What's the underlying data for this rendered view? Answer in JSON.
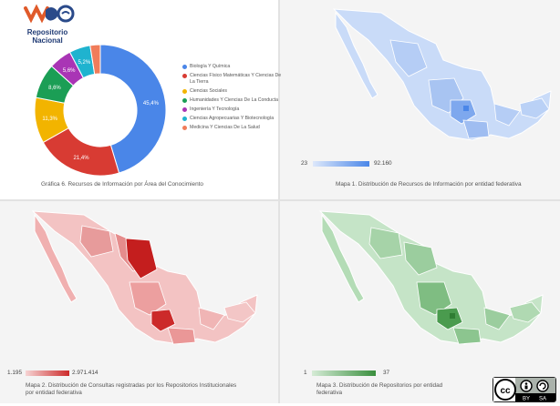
{
  "logo": {
    "title_line1": "Repositorio",
    "title_line2": "Nacional"
  },
  "chart_data": {
    "type": "pie",
    "categories": [
      "Biología Y Química",
      "Ciencias Físico Matemáticas Y Ciencias De La Tierra",
      "Ciencias Sociales",
      "Humanidades Y Ciencias De La Conducta",
      "Ingeniería Y Tecnología",
      "Ciencias Agropecuarias Y Biotecnología",
      "Medicina Y Ciencias De La Salud"
    ],
    "values": [
      45.4,
      21.4,
      11.3,
      8.6,
      5.6,
      5.2,
      2.5
    ],
    "data_labels": [
      "45,4%",
      "21,4%",
      "11,3%",
      "8,6%",
      "5,6%",
      "5,2%",
      ""
    ],
    "colors": [
      "#4a86e8",
      "#d83b33",
      "#f2b400",
      "#1b9e55",
      "#a935b5",
      "#1fb3cf",
      "#f07c5a"
    ],
    "title": "Gráfica 6. Recursos de Información por Área del Conocimiento",
    "legend_position": "right"
  },
  "legend": [
    {
      "label": "Biología Y Química",
      "color": "#4a86e8"
    },
    {
      "label": "Ciencias Físico Matemáticas Y Ciencias De La Tierra",
      "color": "#d83b33"
    },
    {
      "label": "Ciencias Sociales",
      "color": "#f2b400"
    },
    {
      "label": "Humanidades Y Ciencias De La Conducta",
      "color": "#1b9e55"
    },
    {
      "label": "Ingeniería Y Tecnología",
      "color": "#a935b5"
    },
    {
      "label": "Ciencias Agropecuarias Y Biotecnología",
      "color": "#1fb3cf"
    },
    {
      "label": "Medicina Y Ciencias De La Salud",
      "color": "#f07c5a"
    }
  ],
  "map1": {
    "caption": "Mapa 1. Distribución de Recursos de Información por entidad federativa",
    "scale_min": "23",
    "scale_max": "92.160",
    "color_low": "#dde8fb",
    "color_high": "#4a86e8"
  },
  "map2": {
    "caption_line1": "Mapa 2. Distribución de Consultas registradas por los Repositorios Institucionales",
    "caption_line2": "por entidad federativa",
    "scale_min": "1.195",
    "scale_max": "2.971.414",
    "color_low": "#f6d4d4",
    "color_high": "#cc2a2a"
  },
  "map3": {
    "caption_line1": "Mapa 3. Distribución de Repositorios por entidad",
    "caption_line2": "federativa",
    "scale_min": "1",
    "scale_max": "37",
    "color_low": "#d5ebd6",
    "color_high": "#3a8f3e"
  },
  "license": {
    "label_by": "BY",
    "label_sa": "SA",
    "label_cc": "cc"
  }
}
